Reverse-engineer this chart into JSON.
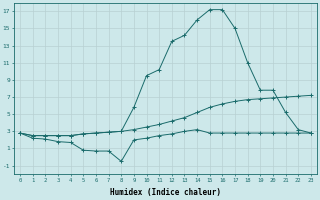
{
  "xlabel": "Humidex (Indice chaleur)",
  "bg_color": "#cde8ea",
  "grid_color": "#b8d0d2",
  "line_color": "#1a6b6b",
  "xlim": [
    -0.5,
    23.5
  ],
  "ylim": [
    -2,
    18
  ],
  "xticks": [
    0,
    1,
    2,
    3,
    4,
    5,
    6,
    7,
    8,
    9,
    10,
    11,
    12,
    13,
    14,
    15,
    16,
    17,
    18,
    19,
    20,
    21,
    22,
    23
  ],
  "yticks": [
    -1,
    1,
    3,
    5,
    7,
    9,
    11,
    13,
    15,
    17
  ],
  "line1_x": [
    0,
    1,
    2,
    3,
    4,
    5,
    6,
    7,
    8,
    9,
    10,
    11,
    12,
    13,
    14,
    15,
    16,
    17,
    18,
    19,
    20,
    21,
    22,
    23
  ],
  "line1_y": [
    2.8,
    2.2,
    2.1,
    1.8,
    1.7,
    0.8,
    0.7,
    0.7,
    -0.5,
    2.0,
    2.2,
    2.5,
    2.7,
    3.0,
    3.2,
    2.8,
    2.8,
    2.8,
    2.8,
    2.8,
    2.8,
    2.8,
    2.8,
    2.8
  ],
  "line2_x": [
    0,
    1,
    2,
    3,
    4,
    5,
    6,
    7,
    8,
    9,
    10,
    11,
    12,
    13,
    14,
    15,
    16,
    17,
    18,
    19,
    20,
    21,
    22,
    23
  ],
  "line2_y": [
    2.8,
    2.5,
    2.5,
    2.5,
    2.5,
    2.7,
    2.8,
    2.9,
    3.0,
    3.2,
    3.5,
    3.8,
    4.2,
    4.6,
    5.2,
    5.8,
    6.2,
    6.5,
    6.7,
    6.8,
    6.9,
    7.0,
    7.1,
    7.2
  ],
  "line3_x": [
    0,
    1,
    2,
    3,
    4,
    5,
    6,
    7,
    8,
    9,
    10,
    11,
    12,
    13,
    14,
    15,
    16,
    17,
    18,
    19,
    20,
    21,
    22,
    23
  ],
  "line3_y": [
    2.8,
    2.5,
    2.5,
    2.5,
    2.5,
    2.7,
    2.8,
    2.9,
    3.0,
    5.8,
    9.5,
    10.2,
    13.5,
    14.2,
    16.0,
    17.2,
    17.2,
    15.0,
    11.0,
    7.8,
    7.8,
    5.2,
    3.2,
    2.8
  ]
}
